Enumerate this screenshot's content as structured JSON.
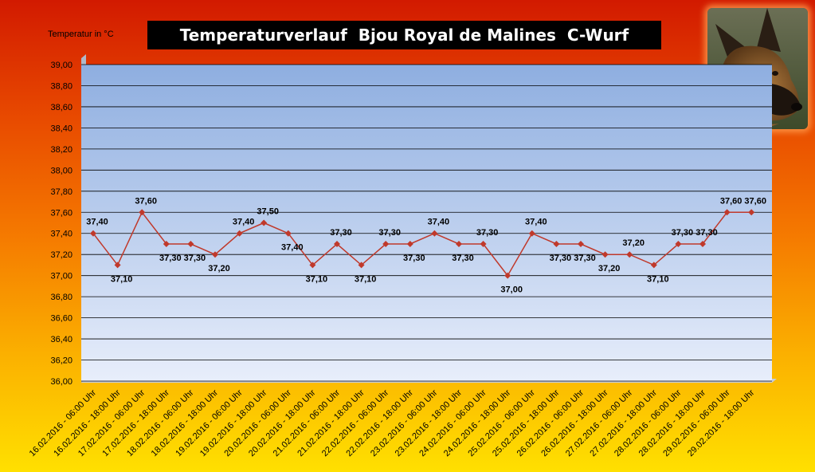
{
  "header": {
    "title": "Temperaturverlauf  Bjou Royal de Malines  C-Wurf",
    "ylabel": "Temperatur in °C"
  },
  "colors": {
    "line": "#c0392b",
    "plot_top": "#8eaee0",
    "plot_bottom": "#e8eefb",
    "title_bg": "#000000"
  },
  "photo": {
    "icon": "dog-photo"
  },
  "chart_data": {
    "type": "line",
    "title": "Temperaturverlauf  Bjou Royal de Malines  C-Wurf",
    "ylabel": "Temperatur in °C",
    "xlabel": "",
    "ylim": [
      36.0,
      39.0
    ],
    "ystep": 0.2,
    "grid": true,
    "categories": [
      "16.02.2016 - 06:00 Uhr",
      "16.02.2016 - 18:00 Uhr",
      "17.02.2016 - 06:00 Uhr",
      "17.02.2016 - 18:00 Uhr",
      "18.02.2016 - 06:00 Uhr",
      "18.02.2016 - 18:00 Uhr",
      "19.02.2016 - 06:00 Uhr",
      "19.02.2016 - 18:00 Uhr",
      "20.02.2016 - 06:00 Uhr",
      "20.02.2016 - 18:00 Uhr",
      "21.02.2016 - 06:00 Uhr",
      "21.02.2016 - 18:00 Uhr",
      "22.02.2016 - 06:00 Uhr",
      "22.02.2016 - 18:00 Uhr",
      "23.02.2016 - 06:00 Uhr",
      "23.02.2016 - 18:00 Uhr",
      "24.02.2016 - 06:00 Uhr",
      "24.02.2016 - 18:00 Uhr",
      "25.02.2016 - 06:00 Uhr",
      "25.02.2016 - 18:00 Uhr",
      "26.02.2016 - 06:00 Uhr",
      "26.02.2016 - 18:00 Uhr",
      "27.02.2016 - 06:00 Uhr",
      "27.02.2016 - 18:00 Uhr",
      "28.02.2016 - 06:00 Uhr",
      "28.02.2016 - 18:00 Uhr",
      "29.02.2016 - 06:00 Uhr",
      "29.02.2016 - 18:00 Uhr"
    ],
    "values": [
      37.4,
      37.1,
      37.6,
      37.3,
      37.3,
      37.2,
      37.4,
      37.5,
      37.4,
      37.1,
      37.3,
      37.1,
      37.3,
      37.3,
      37.4,
      37.3,
      37.3,
      37.0,
      37.4,
      37.3,
      37.3,
      37.2,
      37.2,
      37.1,
      37.3,
      37.3,
      37.6,
      37.6
    ],
    "data_labels": [
      "37,40",
      "37,10",
      "37,60",
      "37,30",
      "37,30",
      "37,20",
      "37,40",
      "37,50",
      "37,40",
      "37,10",
      "37,30",
      "37,10",
      "37,30",
      "37,30",
      "37,40",
      "37,30",
      "37,30",
      "37,00",
      "37,40",
      "37,30",
      "37,30",
      "37,20",
      "37,20",
      "37,10",
      "37,30",
      "37,30",
      "37,60",
      "37,60"
    ],
    "label_pos": [
      "above",
      "below",
      "above",
      "below",
      "below",
      "below",
      "above",
      "above",
      "below",
      "below",
      "above",
      "below",
      "above",
      "below",
      "above",
      "below",
      "above",
      "below",
      "above",
      "below",
      "below",
      "below",
      "above",
      "below",
      "above",
      "above",
      "above",
      "above"
    ],
    "ytick_labels": [
      "36,00",
      "36,20",
      "36,40",
      "36,60",
      "36,80",
      "37,00",
      "37,20",
      "37,40",
      "37,60",
      "37,80",
      "38,00",
      "38,20",
      "38,40",
      "38,60",
      "38,80",
      "39,00"
    ]
  }
}
